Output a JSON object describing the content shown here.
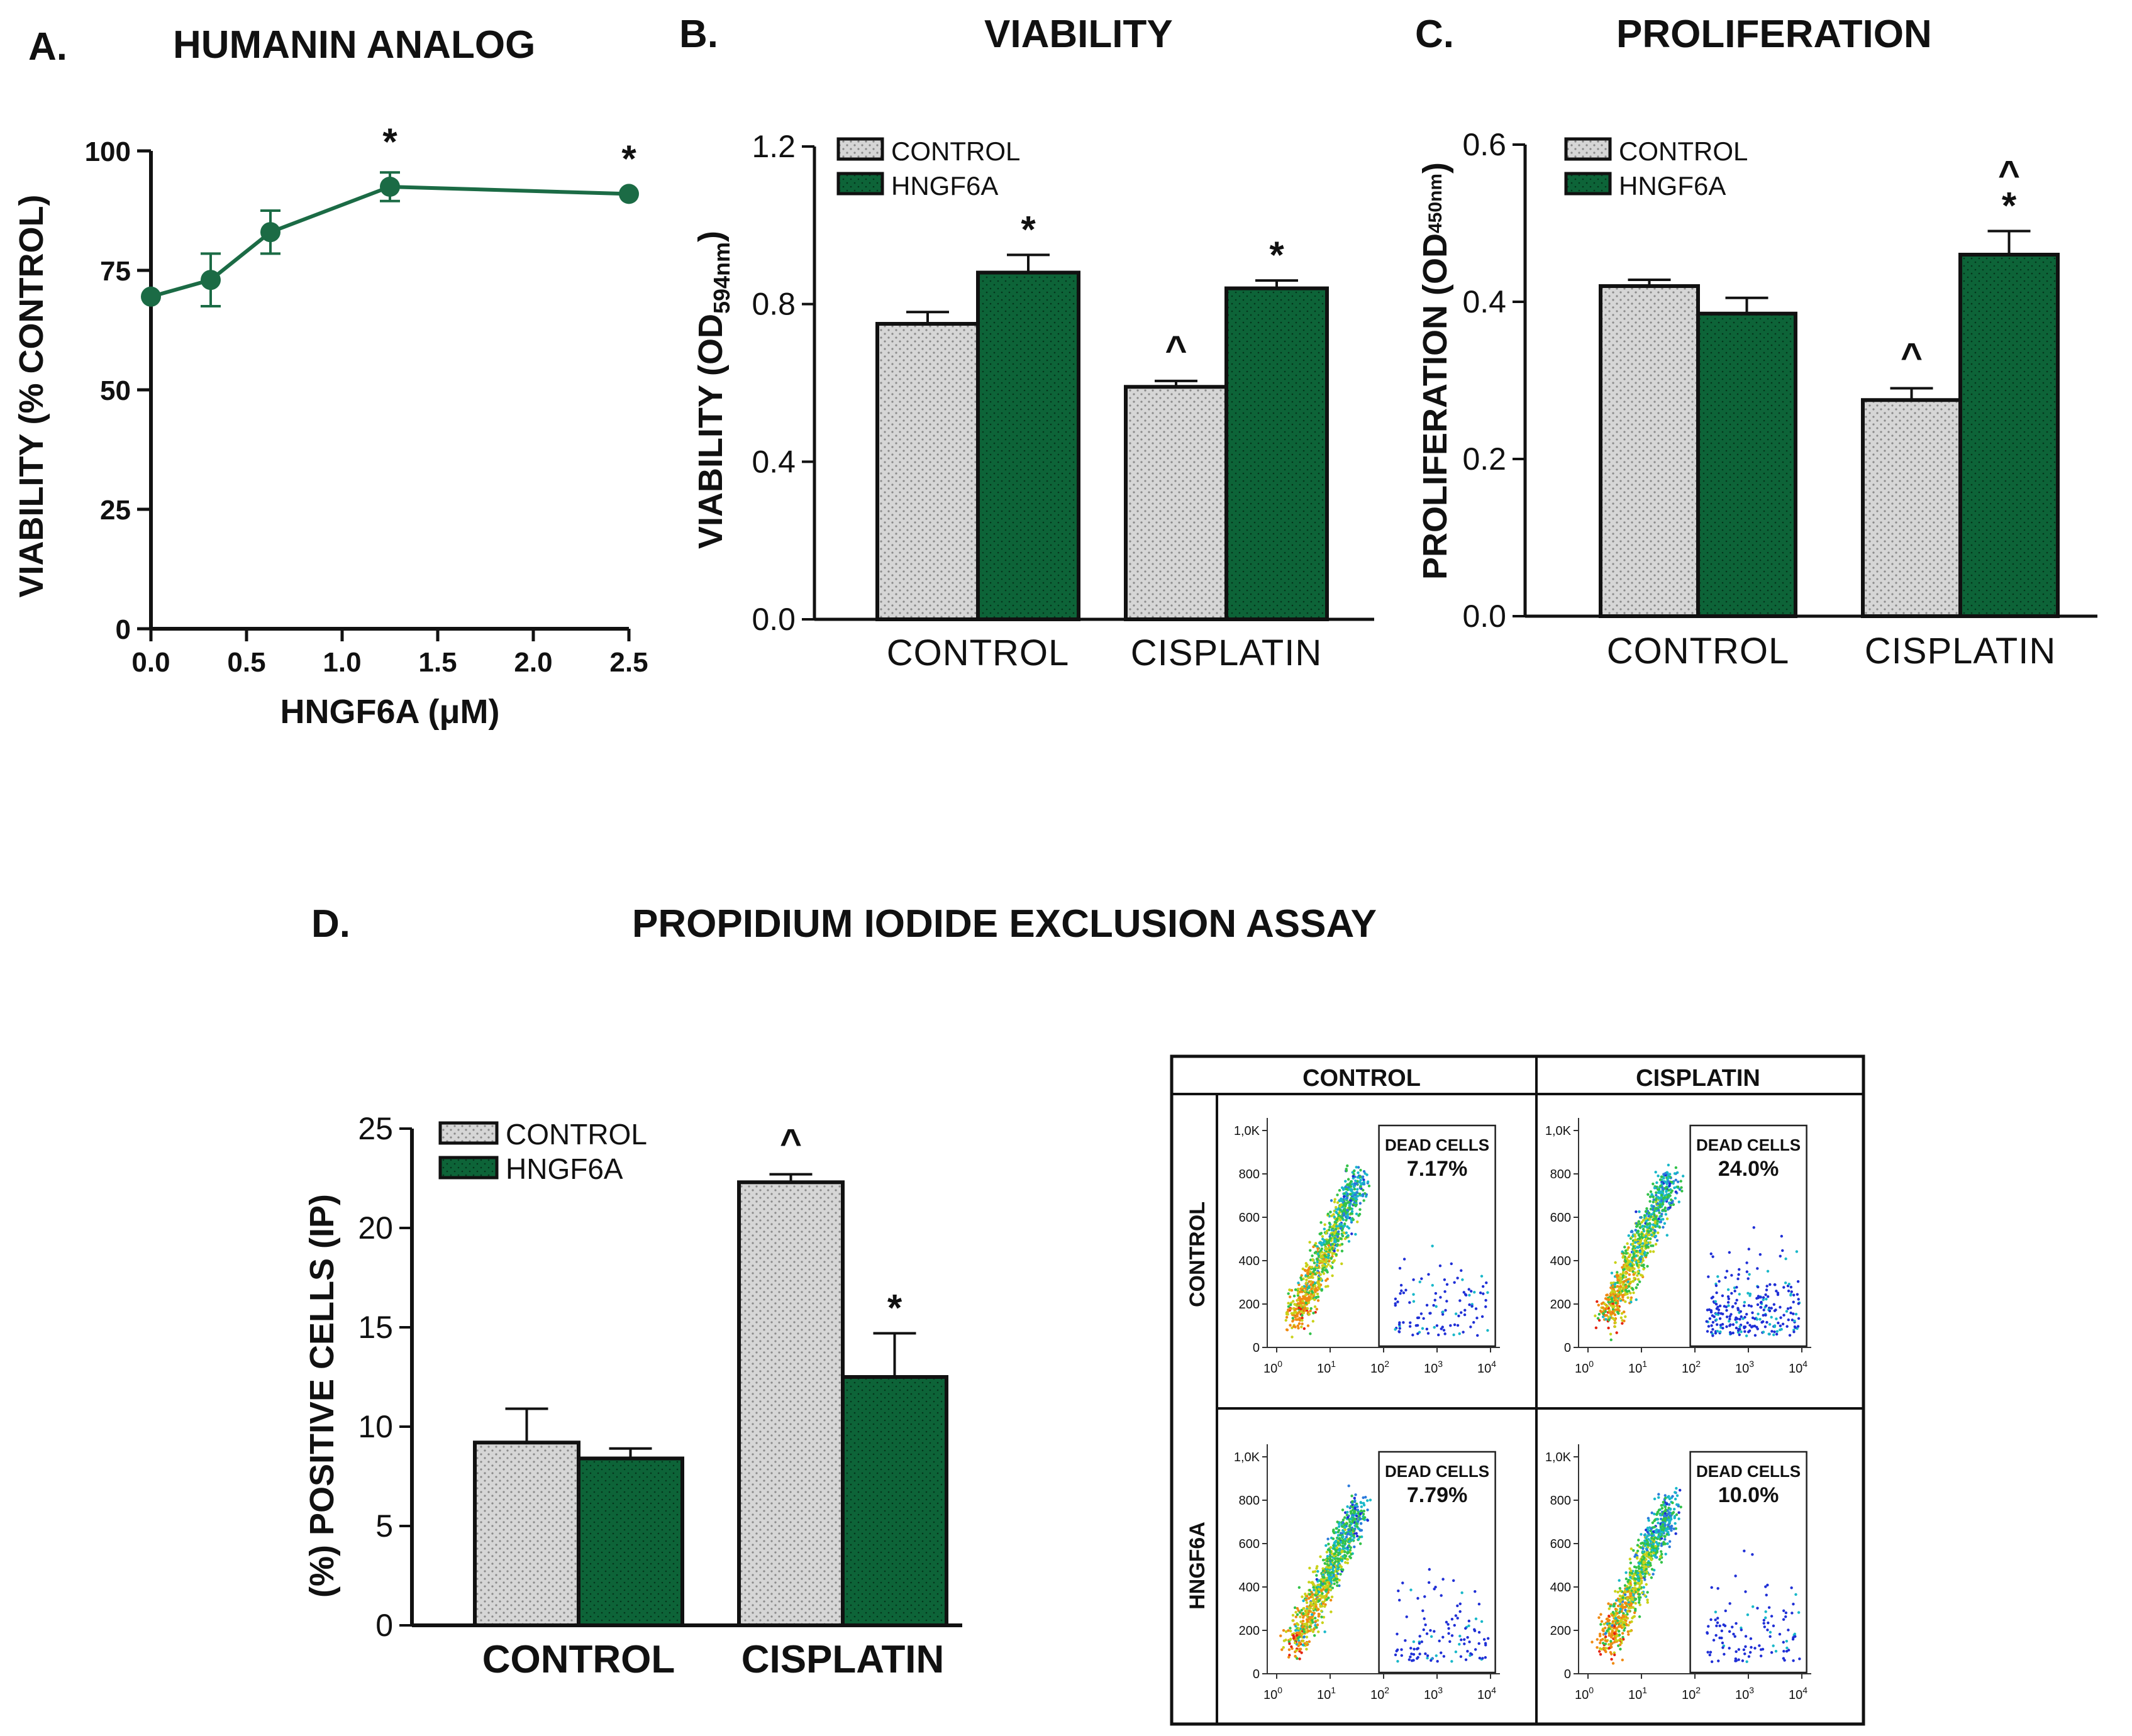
{
  "colors": {
    "control": "#d6d6d6",
    "hngf6a": "#0d6438",
    "line": "#1b6b45",
    "axis": "#111111"
  },
  "panelA": {
    "letter": "A.",
    "title": "HUMANIN ANALOG",
    "chart_data": {
      "type": "line",
      "xlabel": "HNGF6A (μM)",
      "ylabel": "VIABILITY (% CONTROL)",
      "xlim": [
        0,
        2.5
      ],
      "ylim": [
        0,
        100
      ],
      "xticks": [
        "0.0",
        "0.5",
        "1.0",
        "1.5",
        "2.0",
        "2.5"
      ],
      "yticks": [
        "0",
        "25",
        "50",
        "75",
        "100"
      ],
      "x": [
        0,
        0.3125,
        0.625,
        1.25,
        2.5
      ],
      "y": [
        69.5,
        73,
        83,
        92.5,
        91
      ],
      "err": [
        1,
        5.5,
        4.5,
        3,
        1
      ],
      "significance": [
        "",
        "",
        "",
        "*",
        "*"
      ]
    }
  },
  "panelB": {
    "letter": "B.",
    "title": "VIABILITY",
    "chart_data": {
      "type": "bar",
      "categories": [
        "CONTROL",
        "CISPLATIN"
      ],
      "series": [
        {
          "name": "CONTROL",
          "values": [
            0.75,
            0.59
          ],
          "err": [
            0.03,
            0.015
          ],
          "marks": [
            "",
            "^"
          ]
        },
        {
          "name": "HNGF6A",
          "values": [
            0.88,
            0.84
          ],
          "err": [
            0.045,
            0.02
          ],
          "marks": [
            "*",
            "*"
          ]
        }
      ],
      "ylabel_main": "VIABILITY (OD",
      "ylabel_sub": "594nm",
      "ylabel_end": ")",
      "ylim": [
        0,
        1.2
      ],
      "yticks": [
        "0.0",
        "0.4",
        "0.8",
        "1.2"
      ]
    }
  },
  "panelC": {
    "letter": "C.",
    "title": "PROLIFERATION",
    "chart_data": {
      "type": "bar",
      "categories": [
        "CONTROL",
        "CISPLATIN"
      ],
      "series": [
        {
          "name": "CONTROL",
          "values": [
            0.42,
            0.275
          ],
          "err": [
            0.008,
            0.015
          ],
          "marks": [
            "",
            "^"
          ]
        },
        {
          "name": "HNGF6A",
          "values": [
            0.385,
            0.46
          ],
          "err": [
            0.02,
            0.03
          ],
          "marks": [
            "",
            "*"
          ]
        }
      ],
      "extra_mark": "^",
      "ylabel_main": "PROLIFERATION (OD",
      "ylabel_sub": "450nm",
      "ylabel_end": ")",
      "ylim": [
        0,
        0.6
      ],
      "yticks": [
        "0.0",
        "0.2",
        "0.4",
        "0.6"
      ]
    }
  },
  "panelD": {
    "letter": "D.",
    "title": "PROPIDIUM IODIDE EXCLUSION ASSAY",
    "chart_data": {
      "type": "bar",
      "categories": [
        "CONTROL",
        "CISPLATIN"
      ],
      "series": [
        {
          "name": "CONTROL",
          "values": [
            9.2,
            22.3
          ],
          "err": [
            1.7,
            0.4
          ],
          "marks": [
            "",
            "^"
          ]
        },
        {
          "name": "HNGF6A",
          "values": [
            8.4,
            12.5
          ],
          "err": [
            0.5,
            2.2
          ],
          "marks": [
            "",
            "*"
          ]
        }
      ],
      "ylabel": "(%) POSITIVE CELLS (IP)",
      "ylim": [
        0,
        25
      ],
      "yticks": [
        "0",
        "5",
        "10",
        "15",
        "20",
        "25"
      ]
    }
  },
  "flow": {
    "col_headers": [
      "CONTROL",
      "CISPLATIN"
    ],
    "row_headers": [
      "CONTROL",
      "HNGF6A"
    ],
    "gate_label": "DEAD CELLS",
    "y_ticks": [
      "0",
      "200",
      "400",
      "600",
      "800",
      "1,0K"
    ],
    "x_ticks": [
      "10",
      "10",
      "10",
      "10",
      "10"
    ],
    "x_exps": [
      "0",
      "1",
      "2",
      "3",
      "4"
    ],
    "panels": [
      {
        "row": "CONTROL",
        "col": "CONTROL",
        "dead_pct": "7.17%"
      },
      {
        "row": "CONTROL",
        "col": "CISPLATIN",
        "dead_pct": "24.0%"
      },
      {
        "row": "HNGF6A",
        "col": "CONTROL",
        "dead_pct": "7.79%"
      },
      {
        "row": "HNGF6A",
        "col": "CISPLATIN",
        "dead_pct": "10.0%"
      }
    ]
  }
}
